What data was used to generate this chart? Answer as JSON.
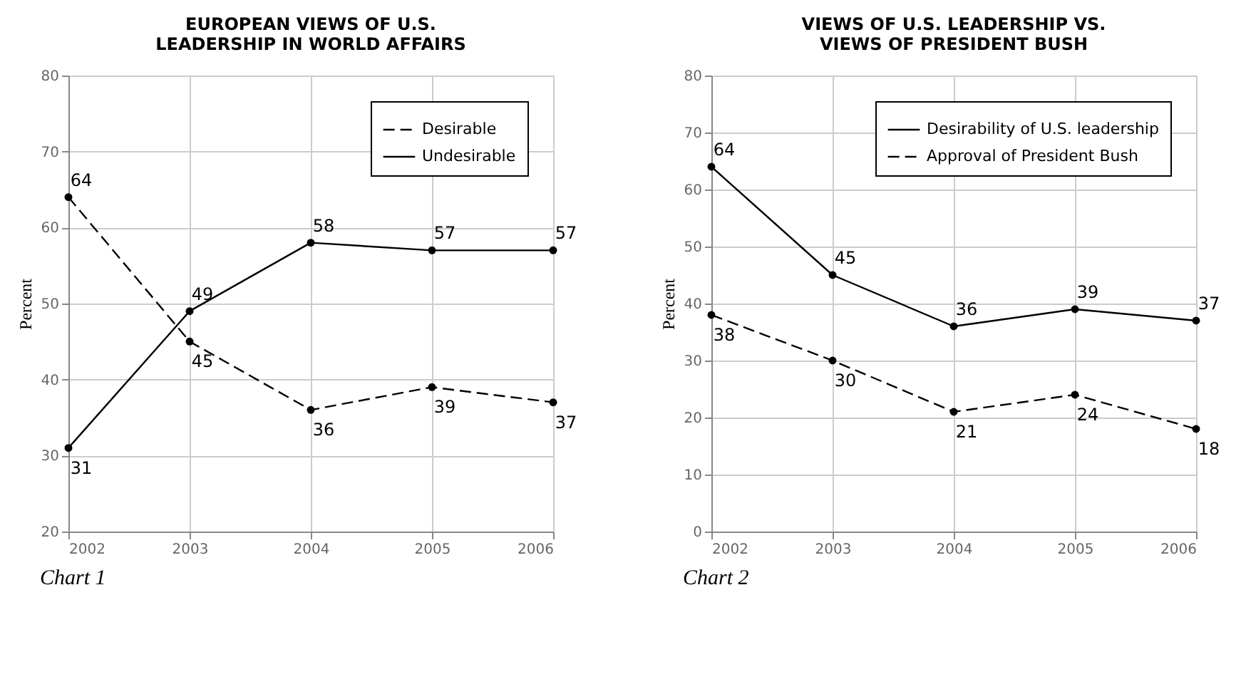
{
  "chart_data": [
    {
      "type": "line",
      "title": "EUROPEAN VIEWS OF U.S.\nLEADERSHIP IN WORLD AFFAIRS",
      "ylabel": "Percent",
      "x": [
        2002,
        2003,
        2004,
        2005,
        2006
      ],
      "xlim": [
        2002,
        2006
      ],
      "xticks": [
        2002,
        2003,
        2004,
        2005,
        2006
      ],
      "ylim": [
        20,
        80
      ],
      "yticks": [
        20,
        30,
        40,
        50,
        60,
        70,
        80
      ],
      "grid": true,
      "legend": "top right",
      "marker": "circle",
      "data_labels": true,
      "annotations": [
        "Chart 1"
      ],
      "series": [
        {
          "name": "Desirable",
          "color": "#000000",
          "line_style": "dashed",
          "values": [
            64,
            45,
            36,
            39,
            37
          ]
        },
        {
          "name": "Undesirable",
          "color": "#000000",
          "line_style": "solid",
          "values": [
            31,
            49,
            58,
            57,
            57
          ]
        }
      ]
    },
    {
      "type": "line",
      "title": "VIEWS OF U.S. LEADERSHIP VS.\nVIEWS OF PRESIDENT BUSH",
      "ylabel": "Percent",
      "x": [
        2002,
        2003,
        2004,
        2005,
        2006
      ],
      "xlim": [
        2002,
        2006
      ],
      "xticks": [
        2002,
        2003,
        2004,
        2005,
        2006
      ],
      "ylim": [
        0,
        80
      ],
      "yticks": [
        0,
        10,
        20,
        30,
        40,
        50,
        60,
        70,
        80
      ],
      "grid": true,
      "legend": "top right",
      "marker": "circle",
      "data_labels": true,
      "annotations": [
        "Chart 2"
      ],
      "series": [
        {
          "name": "Desirability of U.S. leadership",
          "color": "#000000",
          "line_style": "solid",
          "values": [
            64,
            45,
            36,
            39,
            37
          ]
        },
        {
          "name": "Approval of President Bush",
          "color": "#000000",
          "line_style": "dashed",
          "values": [
            38,
            30,
            21,
            24,
            18
          ]
        }
      ]
    }
  ]
}
